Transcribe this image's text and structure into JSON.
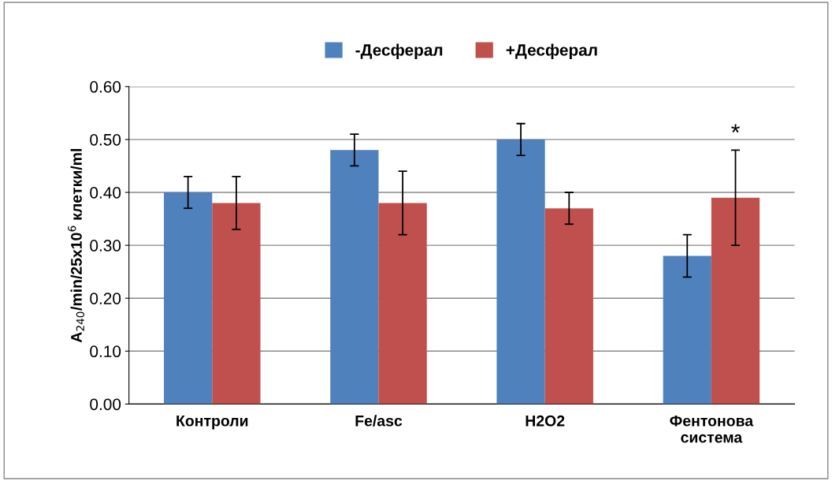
{
  "chart_data": {
    "type": "bar",
    "categories": [
      "Контроли",
      "Fe/asc",
      "H2O2",
      "Фентонова\nсистема"
    ],
    "ylabel": "A$_{240}$/min/25x10$^{6}$ клетки/ml",
    "series": [
      {
        "name": "-Десферал",
        "color": "#4f81bd",
        "values": [
          0.4,
          0.48,
          0.5,
          0.28
        ],
        "errors": [
          0.03,
          0.03,
          0.03,
          0.04
        ]
      },
      {
        "name": "+Десферал",
        "color": "#c0504d",
        "values": [
          0.38,
          0.38,
          0.37,
          0.39
        ],
        "errors": [
          0.05,
          0.06,
          0.03,
          0.09
        ]
      }
    ],
    "annotations": [
      "*"
    ],
    "ylim": [
      0,
      0.6
    ],
    "yticks": [
      {
        "value": 0,
        "label": "0.00"
      },
      {
        "value": 0.1,
        "label": "0.10"
      },
      {
        "value": 0.2,
        "label": "0.20"
      },
      {
        "value": 0.3,
        "label": "0.30"
      },
      {
        "value": 0.4,
        "label": "0.40"
      },
      {
        "value": 0.5,
        "label": "0.50"
      },
      {
        "value": 0.6,
        "label": "0.60"
      }
    ],
    "grid": "y",
    "legend": "top"
  }
}
